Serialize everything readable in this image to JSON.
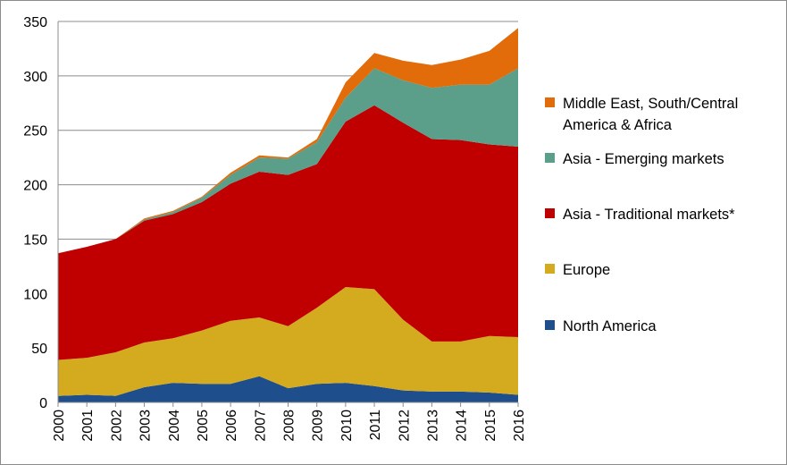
{
  "chart_data": {
    "type": "area",
    "stacked": true,
    "title": "",
    "xlabel": "",
    "ylabel": "",
    "ylim": [
      0,
      350
    ],
    "yticks": [
      0,
      50,
      100,
      150,
      200,
      250,
      300,
      350
    ],
    "grid": "horizontal",
    "legend_position": "right",
    "categories": [
      "2000",
      "2001",
      "2002",
      "2003",
      "2004",
      "2005",
      "2006",
      "2007",
      "2008",
      "2009",
      "2010",
      "2011",
      "2012",
      "2013",
      "2014",
      "2015",
      "2016"
    ],
    "series": [
      {
        "name": "North America",
        "color": "#1f4e8c",
        "values": [
          6,
          7,
          6,
          14,
          18,
          17,
          17,
          24,
          13,
          17,
          18,
          15,
          11,
          10,
          10,
          9,
          7
        ]
      },
      {
        "name": "Europe",
        "color": "#d4aa1e",
        "values": [
          33,
          34,
          40,
          41,
          41,
          49,
          58,
          54,
          57,
          70,
          88,
          89,
          65,
          46,
          46,
          52,
          53
        ]
      },
      {
        "name": "Asia - Traditional markets*",
        "color": "#c00000",
        "values": [
          98,
          102,
          104,
          112,
          114,
          118,
          126,
          134,
          139,
          132,
          152,
          169,
          181,
          186,
          185,
          176,
          175
        ]
      },
      {
        "name": "Asia - Emerging markets",
        "color": "#5b9e8a",
        "values": [
          0,
          0,
          0,
          1,
          2,
          4,
          8,
          13,
          15,
          20,
          22,
          34,
          39,
          47,
          51,
          55,
          72
        ]
      },
      {
        "name": "Middle East, South/Central America & Africa",
        "color": "#e36c0a",
        "values": [
          0,
          0,
          0,
          1,
          1,
          1,
          2,
          2,
          1,
          3,
          14,
          14,
          18,
          21,
          23,
          31,
          37
        ]
      }
    ],
    "legend_order": [
      "Middle East, South/Central America & Africa",
      "Asia - Emerging markets",
      "Asia - Traditional markets*",
      "Europe",
      "North America"
    ]
  }
}
